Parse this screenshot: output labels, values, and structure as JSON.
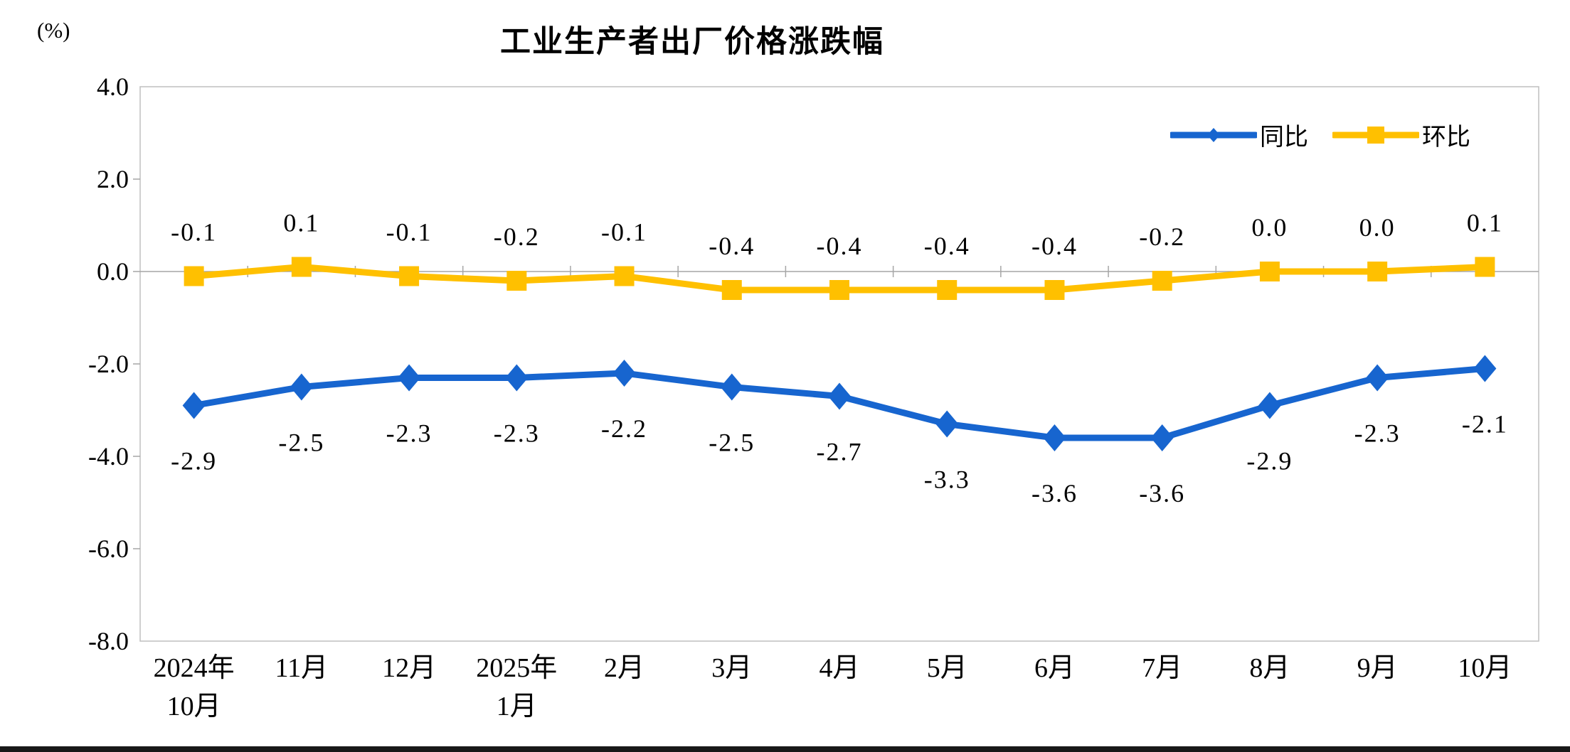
{
  "chart_data": {
    "type": "line",
    "title": "工业生产者出厂价格涨跌幅",
    "unit_label": "(%)",
    "categories": [
      "2024年\n10月",
      "11月",
      "12月",
      "2025年\n1月",
      "2月",
      "3月",
      "4月",
      "5月",
      "6月",
      "7月",
      "8月",
      "9月",
      "10月"
    ],
    "series": [
      {
        "id": "yoy",
        "name": "同比",
        "color": "#1765CF",
        "marker": "diamond",
        "label_position": "below",
        "values": [
          -2.9,
          -2.5,
          -2.3,
          -2.3,
          -2.2,
          -2.5,
          -2.7,
          -3.3,
          -3.6,
          -3.6,
          -2.9,
          -2.3,
          -2.1
        ]
      },
      {
        "id": "mom",
        "name": "环比",
        "color": "#FFC000",
        "marker": "square",
        "label_position": "above",
        "values": [
          -0.1,
          0.1,
          -0.1,
          -0.2,
          -0.1,
          -0.4,
          -0.4,
          -0.4,
          -0.4,
          -0.2,
          0.0,
          0.0,
          0.1
        ]
      }
    ],
    "y_ticks": [
      4.0,
      2.0,
      0.0,
      -2.0,
      -4.0,
      -6.0,
      -8.0
    ],
    "ylim": [
      -8.0,
      4.0
    ],
    "grid": false,
    "legend_position": "top-right-inside",
    "colors": {
      "plot_border": "#BFBFBF",
      "zero_line": "#A6A6A6",
      "tick": "#A6A6A6",
      "text": "#000000"
    }
  }
}
